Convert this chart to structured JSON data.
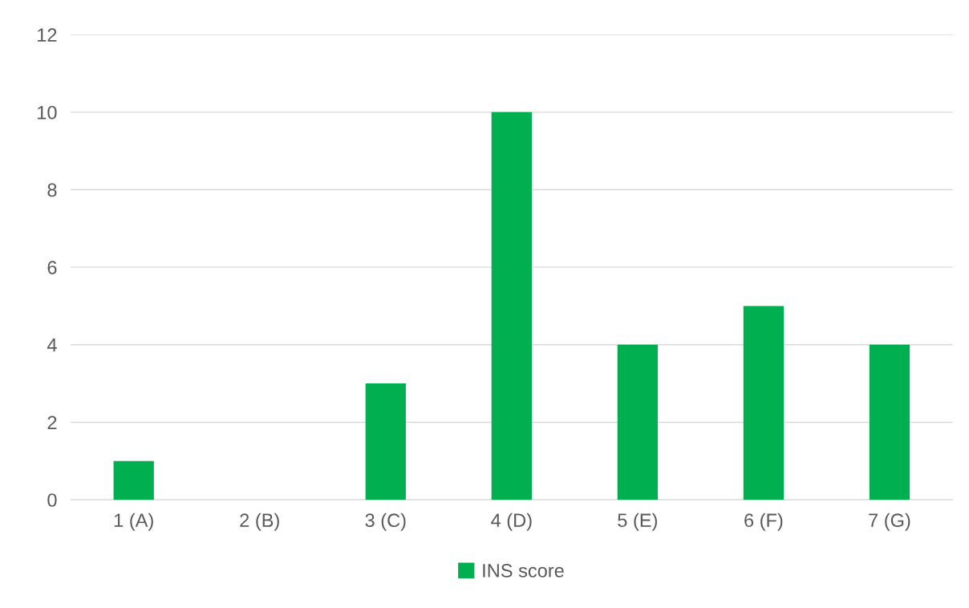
{
  "chart_data": {
    "type": "bar",
    "categories": [
      "1 (A)",
      "2 (B)",
      "3 (C)",
      "4 (D)",
      "5 (E)",
      "6 (F)",
      "7 (G)"
    ],
    "series": [
      {
        "name": "INS score",
        "color": "#00b050",
        "values": [
          1,
          0,
          3,
          10,
          4,
          5,
          4
        ]
      }
    ],
    "ylim": [
      0,
      12
    ],
    "yticks": [
      0,
      2,
      4,
      6,
      8,
      10,
      12
    ],
    "grid": "y",
    "legend": "bottom"
  }
}
